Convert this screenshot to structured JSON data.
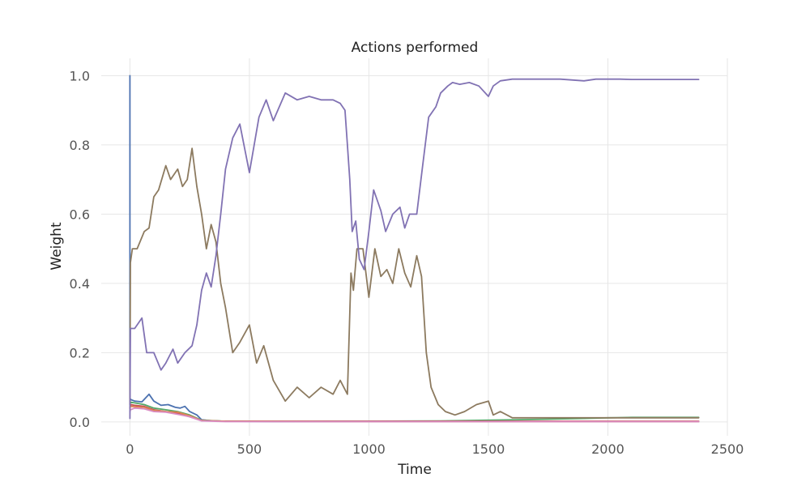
{
  "chart_data": {
    "type": "line",
    "title": "Actions performed",
    "xlabel": "Time",
    "ylabel": "Weight",
    "xlim": [
      -120,
      2500
    ],
    "ylim": [
      -0.04,
      1.05
    ],
    "grid": true,
    "legend": "none",
    "xticks": [
      0,
      500,
      1000,
      1500,
      2000,
      2500
    ],
    "xtick_labels": [
      "0",
      "500",
      "1000",
      "1500",
      "2000",
      "2500"
    ],
    "yticks": [
      0.0,
      0.2,
      0.4,
      0.6,
      0.8,
      1.0
    ],
    "ytick_labels": [
      "0.0",
      "0.2",
      "0.4",
      "0.6",
      "0.8",
      "1.0"
    ],
    "series": [
      {
        "color": "#4c72b0",
        "x": [
          0,
          0,
          2,
          5,
          20,
          50,
          80,
          100,
          130,
          160,
          190,
          210,
          230,
          250,
          280,
          300,
          350,
          400,
          600,
          1000,
          1500,
          2000,
          2380
        ],
        "y": [
          1.0,
          0.06,
          0.066,
          0.064,
          0.06,
          0.058,
          0.08,
          0.06,
          0.048,
          0.05,
          0.042,
          0.04,
          0.045,
          0.03,
          0.02,
          0.006,
          0.003,
          0.002,
          0.001,
          0.001,
          0.001,
          0.001,
          0.001
        ]
      },
      {
        "color": "#55a868",
        "x": [
          0,
          2,
          20,
          60,
          100,
          150,
          200,
          250,
          300,
          400,
          700,
          1000,
          1300,
          1600,
          1750,
          1900,
          2000,
          2100,
          2380
        ],
        "y": [
          0.05,
          0.057,
          0.055,
          0.05,
          0.04,
          0.035,
          0.03,
          0.02,
          0.005,
          0.002,
          0.002,
          0.002,
          0.003,
          0.006,
          0.008,
          0.01,
          0.012,
          0.013,
          0.013
        ]
      },
      {
        "color": "#c44e52",
        "x": [
          0,
          2,
          20,
          60,
          100,
          150,
          200,
          250,
          300,
          400,
          1000,
          2380
        ],
        "y": [
          0.04,
          0.05,
          0.048,
          0.045,
          0.035,
          0.03,
          0.025,
          0.015,
          0.004,
          0.002,
          0.002,
          0.002
        ]
      },
      {
        "color": "#dd8452",
        "x": [
          0,
          2,
          20,
          60,
          100,
          150,
          200,
          250,
          300,
          400,
          1000,
          2380
        ],
        "y": [
          0.04,
          0.045,
          0.044,
          0.042,
          0.033,
          0.03,
          0.028,
          0.018,
          0.004,
          0.002,
          0.001,
          0.001
        ]
      },
      {
        "color": "#da8bc3",
        "x": [
          0,
          2,
          20,
          60,
          100,
          150,
          200,
          250,
          300,
          400,
          1000,
          1500,
          2380
        ],
        "y": [
          0.03,
          0.035,
          0.04,
          0.038,
          0.03,
          0.028,
          0.022,
          0.015,
          0.003,
          0.001,
          0.001,
          0.001,
          0.001
        ]
      },
      {
        "color": "#8c7a5f",
        "x": [
          0,
          2,
          10,
          30,
          60,
          80,
          100,
          120,
          150,
          170,
          200,
          220,
          240,
          260,
          280,
          300,
          320,
          340,
          360,
          380,
          400,
          430,
          460,
          500,
          530,
          560,
          600,
          650,
          700,
          750,
          800,
          850,
          880,
          910,
          925,
          935,
          950,
          975,
          1000,
          1025,
          1050,
          1075,
          1100,
          1125,
          1150,
          1175,
          1200,
          1220,
          1240,
          1260,
          1290,
          1320,
          1360,
          1400,
          1450,
          1500,
          1520,
          1550,
          1600,
          1700,
          1800,
          1900,
          2000,
          2100,
          2200,
          2380
        ],
        "y": [
          0.05,
          0.46,
          0.5,
          0.5,
          0.55,
          0.56,
          0.65,
          0.67,
          0.74,
          0.7,
          0.73,
          0.68,
          0.7,
          0.79,
          0.68,
          0.6,
          0.5,
          0.57,
          0.52,
          0.4,
          0.33,
          0.2,
          0.23,
          0.28,
          0.17,
          0.22,
          0.12,
          0.06,
          0.1,
          0.07,
          0.1,
          0.08,
          0.12,
          0.08,
          0.43,
          0.38,
          0.5,
          0.5,
          0.36,
          0.5,
          0.42,
          0.44,
          0.4,
          0.5,
          0.43,
          0.39,
          0.48,
          0.42,
          0.2,
          0.1,
          0.05,
          0.03,
          0.02,
          0.03,
          0.05,
          0.06,
          0.02,
          0.03,
          0.012,
          0.012,
          0.012,
          0.012,
          0.012,
          0.012,
          0.012,
          0.012
        ]
      },
      {
        "color": "#8172b3",
        "x": [
          0,
          2,
          20,
          50,
          70,
          100,
          130,
          150,
          180,
          200,
          230,
          260,
          280,
          300,
          320,
          340,
          360,
          380,
          400,
          430,
          460,
          500,
          540,
          570,
          600,
          650,
          700,
          750,
          800,
          850,
          880,
          900,
          910,
          920,
          930,
          945,
          960,
          980,
          1000,
          1020,
          1050,
          1070,
          1100,
          1130,
          1150,
          1170,
          1200,
          1225,
          1250,
          1280,
          1300,
          1330,
          1350,
          1380,
          1420,
          1460,
          1500,
          1520,
          1550,
          1600,
          1650,
          1700,
          1800,
          1900,
          1950,
          2000,
          2050,
          2100,
          2200,
          2380
        ],
        "y": [
          0.01,
          0.27,
          0.27,
          0.3,
          0.2,
          0.2,
          0.15,
          0.17,
          0.21,
          0.17,
          0.2,
          0.22,
          0.28,
          0.38,
          0.43,
          0.39,
          0.48,
          0.6,
          0.73,
          0.82,
          0.86,
          0.72,
          0.88,
          0.93,
          0.87,
          0.95,
          0.93,
          0.94,
          0.93,
          0.93,
          0.92,
          0.9,
          0.8,
          0.7,
          0.55,
          0.58,
          0.47,
          0.44,
          0.55,
          0.67,
          0.61,
          0.55,
          0.6,
          0.62,
          0.56,
          0.6,
          0.6,
          0.74,
          0.88,
          0.91,
          0.95,
          0.97,
          0.98,
          0.975,
          0.98,
          0.97,
          0.94,
          0.97,
          0.985,
          0.99,
          0.99,
          0.99,
          0.99,
          0.985,
          0.99,
          0.99,
          0.99,
          0.989,
          0.989,
          0.989
        ]
      }
    ]
  }
}
